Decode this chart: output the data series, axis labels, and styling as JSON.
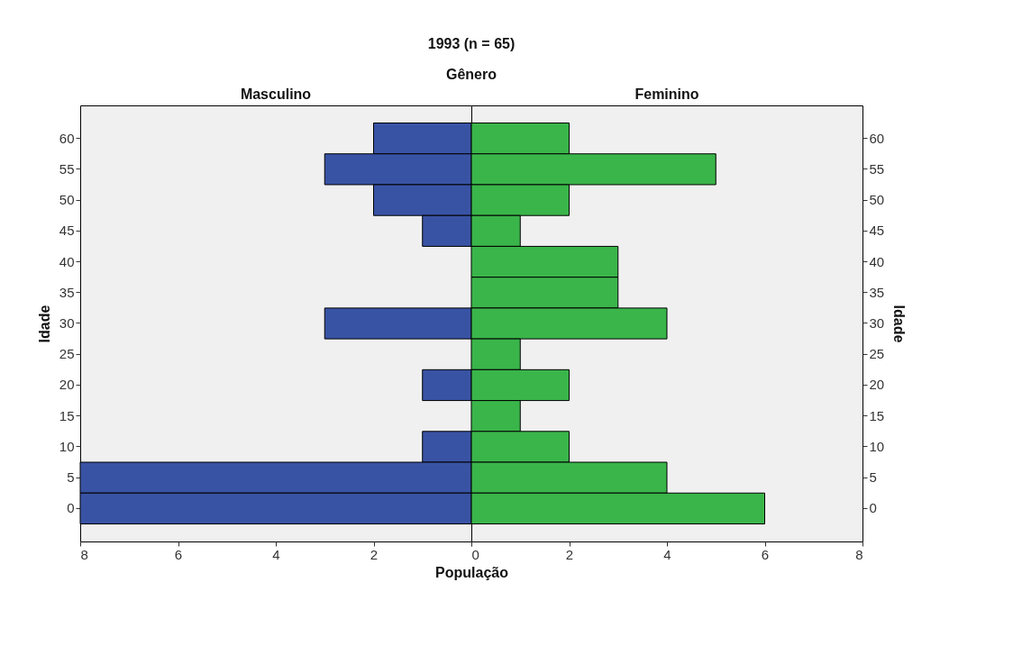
{
  "chart_data": [
    {
      "type": "bar",
      "orientation": "horizontal",
      "title": "1993 (n = 65)",
      "legend_title": "Gênero",
      "xlabel": "População",
      "ylabel": "Idade",
      "categories": [
        "60",
        "55",
        "50",
        "45",
        "40",
        "35",
        "30",
        "25",
        "20",
        "15",
        "10",
        "5",
        "0"
      ],
      "xlim": [
        8,
        0
      ],
      "xticks": [
        8,
        6,
        4,
        2,
        {
          "value": 0,
          "label": null
        }
      ],
      "grid": false,
      "legend": false,
      "series": [
        {
          "name": "Masculino",
          "color": "#3953a4",
          "values": [
            2,
            3,
            2,
            1,
            null,
            null,
            3,
            null,
            1,
            null,
            1,
            8,
            8
          ]
        }
      ]
    },
    {
      "type": "bar",
      "orientation": "horizontal",
      "ylabel": "Idade",
      "categories": [
        "60",
        "55",
        "50",
        "45",
        "40",
        "35",
        "30",
        "25",
        "20",
        "15",
        "10",
        "5",
        "0"
      ],
      "xlim": [
        0,
        8
      ],
      "xticks": [
        0,
        2,
        4,
        6,
        8
      ],
      "grid": false,
      "legend": false,
      "series": [
        {
          "name": "Feminino",
          "color": "#3ab54a",
          "values": [
            2,
            5,
            2,
            1,
            3,
            3,
            4,
            1,
            2,
            1,
            2,
            4,
            6
          ]
        }
      ]
    }
  ]
}
